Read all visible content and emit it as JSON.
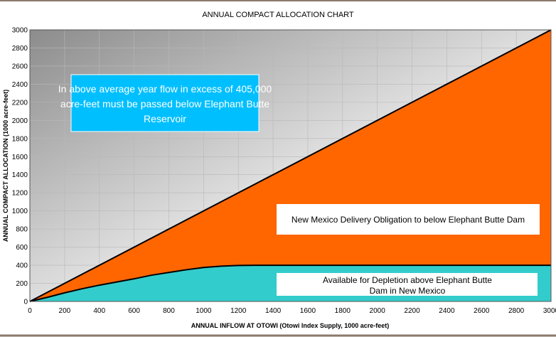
{
  "chart_data": {
    "type": "area",
    "title": "ANNUAL COMPACT ALLOCATION CHART",
    "xlabel": "ANNUAL INFLOW AT OTOWI (Otowi Index Supply, 1000 acre-feet)",
    "ylabel": "ANNUAL COMPACT ALLOCATION (1000 acre-feet)",
    "xlim": [
      0,
      3000
    ],
    "ylim": [
      0,
      3000
    ],
    "x_ticks": [
      "0",
      "200",
      "400",
      "600",
      "800",
      "1000",
      "1200",
      "1400",
      "1600",
      "1800",
      "2000",
      "2200",
      "2400",
      "2600",
      "2800",
      "3000"
    ],
    "y_ticks": [
      "0",
      "200",
      "400",
      "600",
      "800",
      "1000",
      "1200",
      "1400",
      "1600",
      "1800",
      "2000",
      "2200",
      "2400",
      "2600",
      "2800",
      "3000"
    ],
    "grid": true,
    "series": [
      {
        "color": "#FF6600",
        "x": [
          0,
          3000
        ],
        "values": [
          0,
          3000
        ]
      },
      {
        "color": "#33CCCC",
        "x": [
          0,
          100,
          200,
          300,
          400,
          500,
          600,
          700,
          800,
          900,
          1000,
          1100,
          1200,
          1300,
          3000
        ],
        "values": [
          0,
          45,
          95,
          140,
          180,
          215,
          250,
          290,
          320,
          350,
          375,
          390,
          398,
          400,
          400
        ]
      }
    ],
    "annotations": {
      "passed_below": "In above average year flow in excess of 405,000 acre-feet must be passed below Elephant Butte Reservoir",
      "passed_below_lines": [
        "In above average year flow in excess of 405,000",
        "acre-feet must be passed below Elephant Butte",
        "Reservoir"
      ],
      "delivery": "New Mexico Delivery Obligation to below Elephant Butte Dam",
      "depletion": "Available for Depletion above Elephant Butte Dam in New Mexico",
      "depletion_lines": [
        "Available for Depletion above Elephant Butte",
        "Dam in New Mexico"
      ]
    },
    "colors": {
      "orange": "#FF6600",
      "teal": "#33CCCC",
      "callout_blue": "#00BFFF"
    }
  }
}
